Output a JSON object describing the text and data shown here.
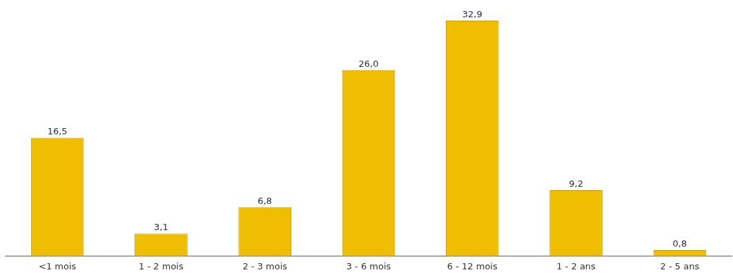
{
  "chart_data": {
    "type": "bar",
    "categories": [
      "<1 mois",
      "1 - 2 mois",
      "2 - 3 mois",
      "3 - 6 mois",
      "6 - 12 mois",
      "1 - 2 ans",
      "2 - 5 ans"
    ],
    "values": [
      16.5,
      3.1,
      6.8,
      26.0,
      32.9,
      9.2,
      0.8
    ],
    "value_labels": [
      "16,5",
      "3,1",
      "6,8",
      "26,0",
      "32,9",
      "9,2",
      "0,8"
    ],
    "color": "#f0be00",
    "grid": false,
    "legend": false
  }
}
